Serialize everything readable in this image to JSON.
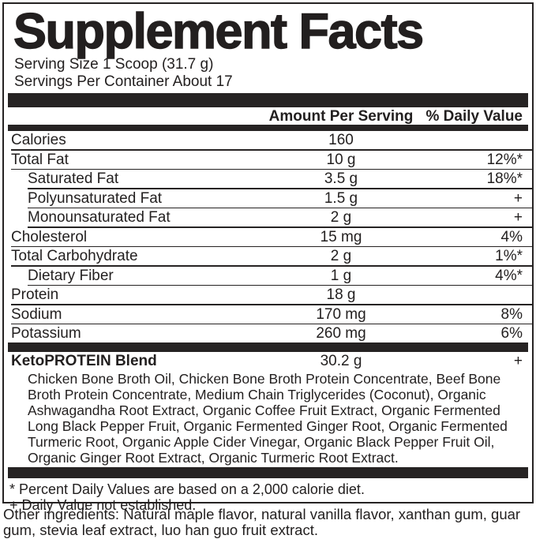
{
  "title": "Supplement Facts",
  "serving": {
    "size": "Serving Size 1 Scoop (31.7 g)",
    "per_container": "Servings Per Container About 17"
  },
  "columns": {
    "amount": "Amount Per Serving",
    "dv": "% Daily Value"
  },
  "rows": [
    {
      "name": "Calories",
      "amount": "160",
      "dv": ""
    },
    {
      "name": "Total Fat",
      "amount": "10 g",
      "dv": "12%*"
    },
    {
      "name": "Saturated Fat",
      "amount": "3.5 g",
      "dv": "18%*"
    },
    {
      "name": "Polyunsaturated Fat",
      "amount": "1.5 g",
      "dv": "+"
    },
    {
      "name": "Monounsaturated Fat",
      "amount": "2 g",
      "dv": "+"
    },
    {
      "name": "Cholesterol",
      "amount": "15 mg",
      "dv": "4%"
    },
    {
      "name": "Total Carbohydrate",
      "amount": "2 g",
      "dv": "1%*"
    },
    {
      "name": "Dietary Fiber",
      "amount": "1 g",
      "dv": "4%*"
    },
    {
      "name": "Protein",
      "amount": "18 g",
      "dv": ""
    },
    {
      "name": "Sodium",
      "amount": "170 mg",
      "dv": "8%"
    },
    {
      "name": "Potassium",
      "amount": "260 mg",
      "dv": "6%"
    }
  ],
  "blend": {
    "name": "KetoPROTEIN Blend",
    "amount": "30.2 g",
    "dv": "+",
    "ingredients": "Chicken Bone Broth Oil, Chicken Bone Broth Protein Concentrate, Beef Bone Broth Protein Concentrate, Medium Chain Triglycerides (Coconut), Organic Ashwagandha Root Extract, Organic Coffee Fruit Extract, Organic Fermented Long Black Pepper Fruit, Organic Fermented Ginger Root, Organic Fermented Turmeric Root, Organic Apple Cider Vinegar, Organic Black Pepper Fruit Oil, Organic Ginger Root Extract, Organic Turmeric Root Extract."
  },
  "footnotes": {
    "percent": "* Percent Daily Values are based on a 2,000 calorie diet.",
    "plus": "+ Daily Value not established."
  },
  "other_ingredients": "Other ingredients: Natural maple flavor, natural vanilla flavor, xanthan gum, guar gum, stevia leaf extract, luo han guo fruit extract.",
  "colors": {
    "ink": "#221f1f",
    "background": "#ffffff"
  }
}
